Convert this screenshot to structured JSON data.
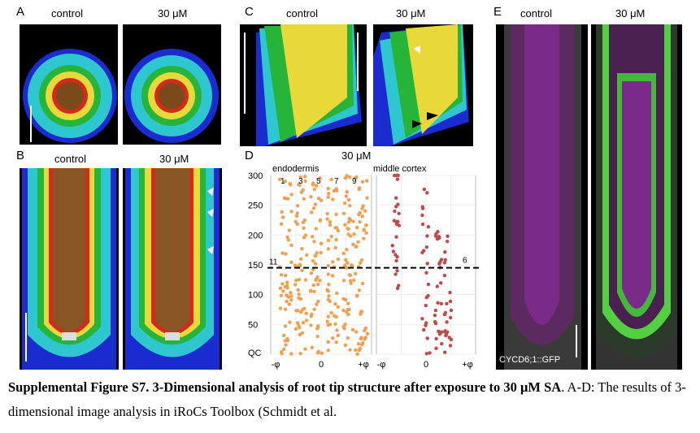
{
  "panels": {
    "A": {
      "letter": "A",
      "left_title": "control",
      "right_title": "30 μM"
    },
    "B": {
      "letter": "B",
      "left_title": "control",
      "right_title": "30 μM"
    },
    "C": {
      "letter": "C",
      "left_title": "control",
      "right_title": "30 μM"
    },
    "D": {
      "letter": "D",
      "title": "30 μM",
      "sub_left": "endodermis",
      "sub_right": "middle  cortex"
    },
    "E": {
      "letter": "E",
      "left_title": "control",
      "right_title": "30 μM",
      "marker": "CYCD6;1::GFP"
    }
  },
  "chart_data": {
    "type": "scatter",
    "title": "30 μM",
    "panels": [
      {
        "name": "endodermis",
        "color": "#f0a050",
        "file_labels": [
          "1",
          "3",
          "5",
          "7",
          "9"
        ],
        "side_label": "11",
        "xticks": [
          "-φ",
          "0",
          "+φ"
        ]
      },
      {
        "name": "middle  cortex",
        "color": "#c04a4a",
        "side_label": "6",
        "xticks": [
          "-φ",
          "0",
          "+φ"
        ]
      }
    ],
    "yticks": [
      "300",
      "250",
      "200",
      "150",
      "100",
      "50",
      "QC"
    ],
    "ylim": [
      0,
      300
    ],
    "threshold_line": 145,
    "grid": true
  },
  "caption": {
    "bold": "Supplemental Figure S7. 3-Dimensional analysis of root tip structure after exposure to 30 μM SA",
    "rest": ". A-D: The results of 3-dimensional image analysis in iRoCs Toolbox (Schmidt et al."
  }
}
